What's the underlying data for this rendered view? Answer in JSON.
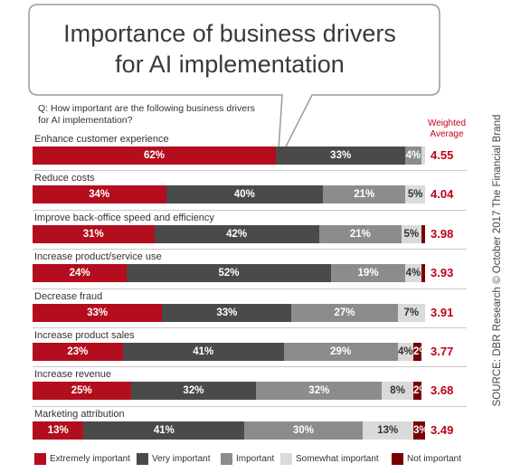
{
  "chart_data": {
    "type": "bar",
    "orientation": "horizontal",
    "stacked": true,
    "title": [
      "Importance of business drivers",
      "for AI implementation"
    ],
    "question": [
      "Q:  How important are the following business drivers",
      "      for AI implementation?"
    ],
    "avg_header": [
      "Weighted",
      "Average"
    ],
    "categories": [
      "Enhance customer experience",
      "Reduce costs",
      "Improve back-office speed and efficiency",
      "Increase product/service use",
      "Decrease fraud",
      "Increase product sales",
      "Increase revenue",
      "Marketing attribution"
    ],
    "series": [
      {
        "name": "Extremely important",
        "color": "#b30d1e",
        "values": [
          62,
          34,
          31,
          24,
          33,
          23,
          25,
          13
        ]
      },
      {
        "name": "Very important",
        "color": "#4a4a4a",
        "values": [
          33,
          40,
          42,
          52,
          33,
          41,
          32,
          41
        ]
      },
      {
        "name": "Important",
        "color": "#8c8c8c",
        "values": [
          4,
          21,
          21,
          19,
          27,
          29,
          32,
          30
        ]
      },
      {
        "name": "Somewhat important",
        "color": "#dadada",
        "values": [
          1,
          5,
          5,
          4,
          7,
          4,
          8,
          13
        ]
      },
      {
        "name": "Not important",
        "color": "#7a0000",
        "values": [
          0,
          0,
          1,
          1,
          0,
          2,
          2,
          3
        ]
      }
    ],
    "segment_labels": [
      [
        "62%",
        "33%",
        "4%",
        "",
        ""
      ],
      [
        "34%",
        "40%",
        "21%",
        "5%",
        ""
      ],
      [
        "31%",
        "42%",
        "21%",
        "5%",
        ""
      ],
      [
        "24%",
        "52%",
        "19%",
        "4%",
        ""
      ],
      [
        "33%",
        "33%",
        "27%",
        "7%",
        ""
      ],
      [
        "23%",
        "41%",
        "29%",
        "4%",
        "2%"
      ],
      [
        "25%",
        "32%",
        "32%",
        "8%",
        "2%"
      ],
      [
        "13%",
        "41%",
        "30%",
        "13%",
        "3%"
      ]
    ],
    "weighted_average": [
      "4.55",
      "4.04",
      "3.98",
      "3.93",
      "3.91",
      "3.77",
      "3.68",
      "3.49"
    ],
    "xlim": [
      0,
      100
    ],
    "legend_position": "bottom",
    "source": "SOURCE: DBR Research © October 2017 The Financial Brand"
  }
}
